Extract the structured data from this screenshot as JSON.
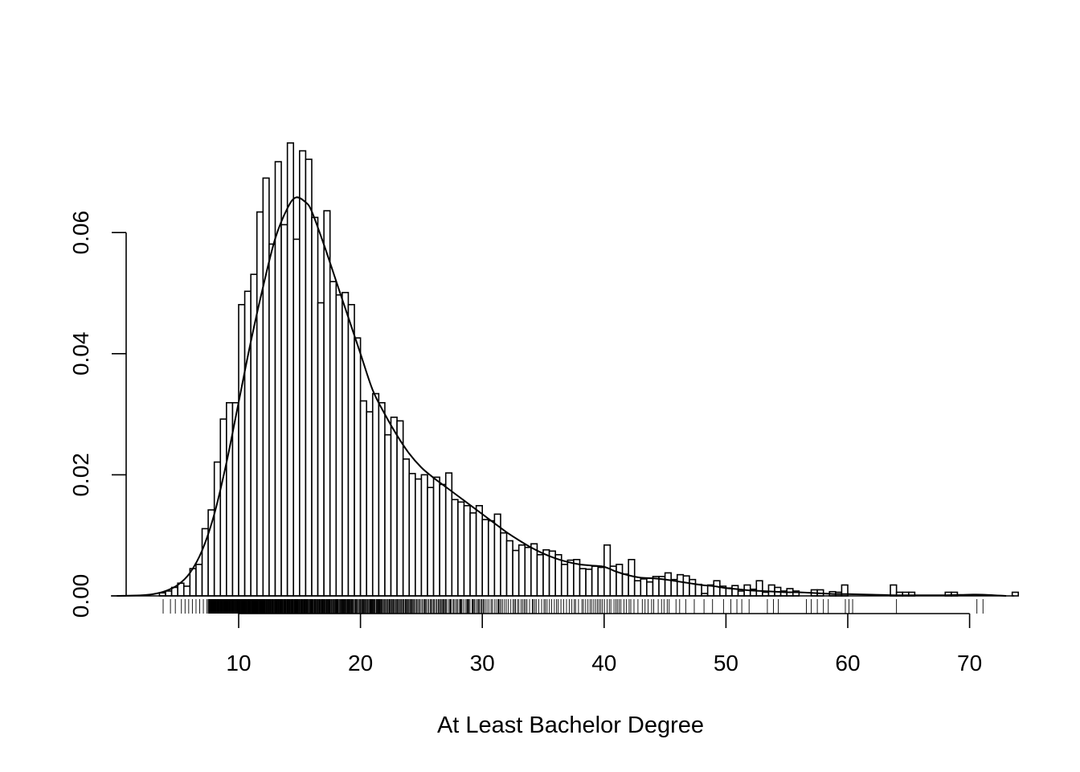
{
  "chart_data": {
    "type": "bar",
    "subtype": "histogram-with-density-curve-and-rug",
    "title": "",
    "xlabel": "At Least Bachelor Degree",
    "ylabel": "",
    "xlim": [
      0,
      73
    ],
    "ylim": [
      0,
      0.06
    ],
    "x_ticks": [
      10,
      20,
      30,
      40,
      50,
      60,
      70
    ],
    "x_tick_labels": [
      "10",
      "20",
      "30",
      "40",
      "50",
      "60",
      "70"
    ],
    "y_ticks": [
      0,
      0.02,
      0.04,
      0.06
    ],
    "y_tick_labels": [
      "0.00",
      "0.02",
      "0.04",
      "0.06"
    ],
    "grid": false,
    "legend": "none",
    "bin_width": 0.5,
    "bins_start": 3.5,
    "density": [
      0.0005,
      0.0008,
      0.0014,
      0.0021,
      0.0016,
      0.0045,
      0.0052,
      0.0111,
      0.0142,
      0.0221,
      0.0292,
      0.0319,
      0.0319,
      0.0481,
      0.0503,
      0.0531,
      0.0634,
      0.069,
      0.0581,
      0.0717,
      0.0613,
      0.0748,
      0.0589,
      0.0735,
      0.0721,
      0.0625,
      0.0484,
      0.0636,
      0.0519,
      0.0497,
      0.0501,
      0.0481,
      0.0426,
      0.0322,
      0.0304,
      0.0334,
      0.0319,
      0.0266,
      0.0295,
      0.0289,
      0.0226,
      0.0202,
      0.0193,
      0.02,
      0.0179,
      0.0196,
      0.0184,
      0.0203,
      0.0159,
      0.0155,
      0.0149,
      0.0137,
      0.0149,
      0.0126,
      0.0124,
      0.0135,
      0.0104,
      0.0091,
      0.0075,
      0.0084,
      0.008,
      0.0086,
      0.0068,
      0.0076,
      0.0074,
      0.0068,
      0.0052,
      0.0059,
      0.006,
      0.0045,
      0.0044,
      0.0049,
      0.0047,
      0.0084,
      0.0049,
      0.0052,
      0.0036,
      0.006,
      0.0025,
      0.0028,
      0.0023,
      0.0032,
      0.0032,
      0.0038,
      0.0027,
      0.0035,
      0.0033,
      0.0027,
      0.0019,
      0.0004,
      0.0018,
      0.0025,
      0.0016,
      0.0013,
      0.0017,
      0.0008,
      0.0018,
      0.0011,
      0.0025,
      0.0006,
      0.0018,
      0.0014,
      0.0008,
      0.0012,
      0.0008,
      0.0,
      0.0,
      0.001,
      0.001,
      0.0,
      0.0007,
      0.0006,
      0.0018,
      0.0,
      0.0,
      0.0,
      0.0,
      0.0,
      0.0,
      0.0,
      0.0018,
      0.0006,
      0.0006,
      0.0006,
      0.0,
      0.0,
      0.0,
      0.0,
      0.0,
      0.0006,
      0.0006,
      0.0,
      0.0,
      0.0,
      0.0,
      0.0,
      0.0,
      0.0,
      0.0,
      0.0,
      0.0006,
      0.0,
      0.0,
      0.0,
      0.0,
      0.0,
      0.0,
      0.0,
      0.0,
      0.0,
      0.0,
      0.0,
      0.0,
      0.0,
      0.0006,
      0.0006
    ],
    "density_curve": {
      "x": [
        0,
        2,
        3,
        4,
        5,
        6,
        7,
        8,
        9,
        10,
        11,
        12,
        13,
        14,
        14.7,
        15.5,
        16,
        17,
        18,
        19,
        20,
        21,
        22,
        23,
        24,
        25,
        26,
        27,
        28,
        29,
        30,
        31,
        32,
        33,
        34,
        35,
        36,
        37,
        38,
        39,
        40,
        41,
        42,
        43,
        44,
        45,
        46,
        47,
        48,
        49,
        50,
        51,
        52,
        53,
        54,
        55,
        56,
        57,
        58,
        59,
        60,
        62,
        64,
        66,
        68,
        70,
        71,
        73
      ],
      "y": [
        0.0,
        0.0001,
        0.0003,
        0.0008,
        0.0018,
        0.0038,
        0.0075,
        0.0135,
        0.022,
        0.032,
        0.042,
        0.051,
        0.059,
        0.064,
        0.0658,
        0.065,
        0.0635,
        0.058,
        0.052,
        0.046,
        0.04,
        0.034,
        0.03,
        0.0265,
        0.0235,
        0.0212,
        0.0195,
        0.018,
        0.0165,
        0.015,
        0.0135,
        0.012,
        0.0105,
        0.0092,
        0.008,
        0.007,
        0.0062,
        0.0056,
        0.0052,
        0.005,
        0.0048,
        0.004,
        0.0034,
        0.003,
        0.0029,
        0.0027,
        0.0024,
        0.0021,
        0.0018,
        0.0016,
        0.0013,
        0.0011,
        0.0009,
        0.0008,
        0.0007,
        0.0006,
        0.0006,
        0.0005,
        0.0004,
        0.0003,
        0.0003,
        0.0002,
        0.0001,
        0.0001,
        0.0001,
        0.0002,
        0.0002,
        0.0
      ]
    },
    "rug": {
      "sparse_values": [
        3.8,
        4.4,
        4.8,
        5.3,
        5.6,
        5.9,
        6.2,
        6.5,
        6.8,
        7.1,
        7.4,
        45.9,
        46.2,
        46.7,
        47.4,
        48.2,
        48.9,
        49.8,
        50.4,
        50.9,
        51.3,
        51.9,
        53.4,
        53.9,
        54.3,
        56.6,
        57.0,
        57.5,
        58.0,
        58.4,
        59.8,
        60.1,
        60.4,
        64.0,
        70.6,
        71.1
      ],
      "dense_range": [
        7.5,
        45.5
      ]
    }
  }
}
